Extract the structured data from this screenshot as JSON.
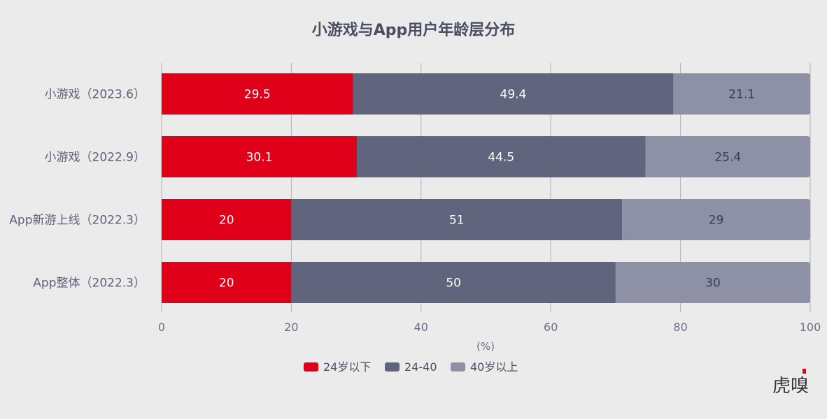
{
  "chart_data": {
    "type": "bar",
    "orientation": "horizontal",
    "stacked": true,
    "title": "小游戏与App用户年龄层分布",
    "xlabel": "(%)",
    "ylabel": "",
    "xlim": [
      0,
      100
    ],
    "xticks": [
      "0",
      "20",
      "40",
      "60",
      "80",
      "100"
    ],
    "grid": true,
    "legend_position": "bottom",
    "categories": [
      "小游戏（2023.6）",
      "小游戏（2022.9）",
      "App新游上线（2022.3）",
      "App整体（2022.3）"
    ],
    "series": [
      {
        "name": "24岁以下",
        "color": "#e00019",
        "label_color": "#ffffff",
        "values": [
          29.5,
          30.1,
          20,
          20
        ]
      },
      {
        "name": "24-40",
        "color": "#61647d",
        "label_color": "#ffffff",
        "values": [
          49.4,
          44.5,
          51,
          50
        ]
      },
      {
        "name": "40岁以上",
        "color": "#8e90a6",
        "label_color": "#3a3d4f",
        "values": [
          21.1,
          25.4,
          29,
          30
        ]
      }
    ],
    "value_labels": [
      [
        "29.5",
        "30.1",
        "20",
        "20"
      ],
      [
        "49.4",
        "44.5",
        "51",
        "50"
      ],
      [
        "21.1",
        "25.4",
        "29",
        "30"
      ]
    ]
  },
  "watermark": {
    "text": "虎嗅",
    "accent_color": "#e00019"
  }
}
